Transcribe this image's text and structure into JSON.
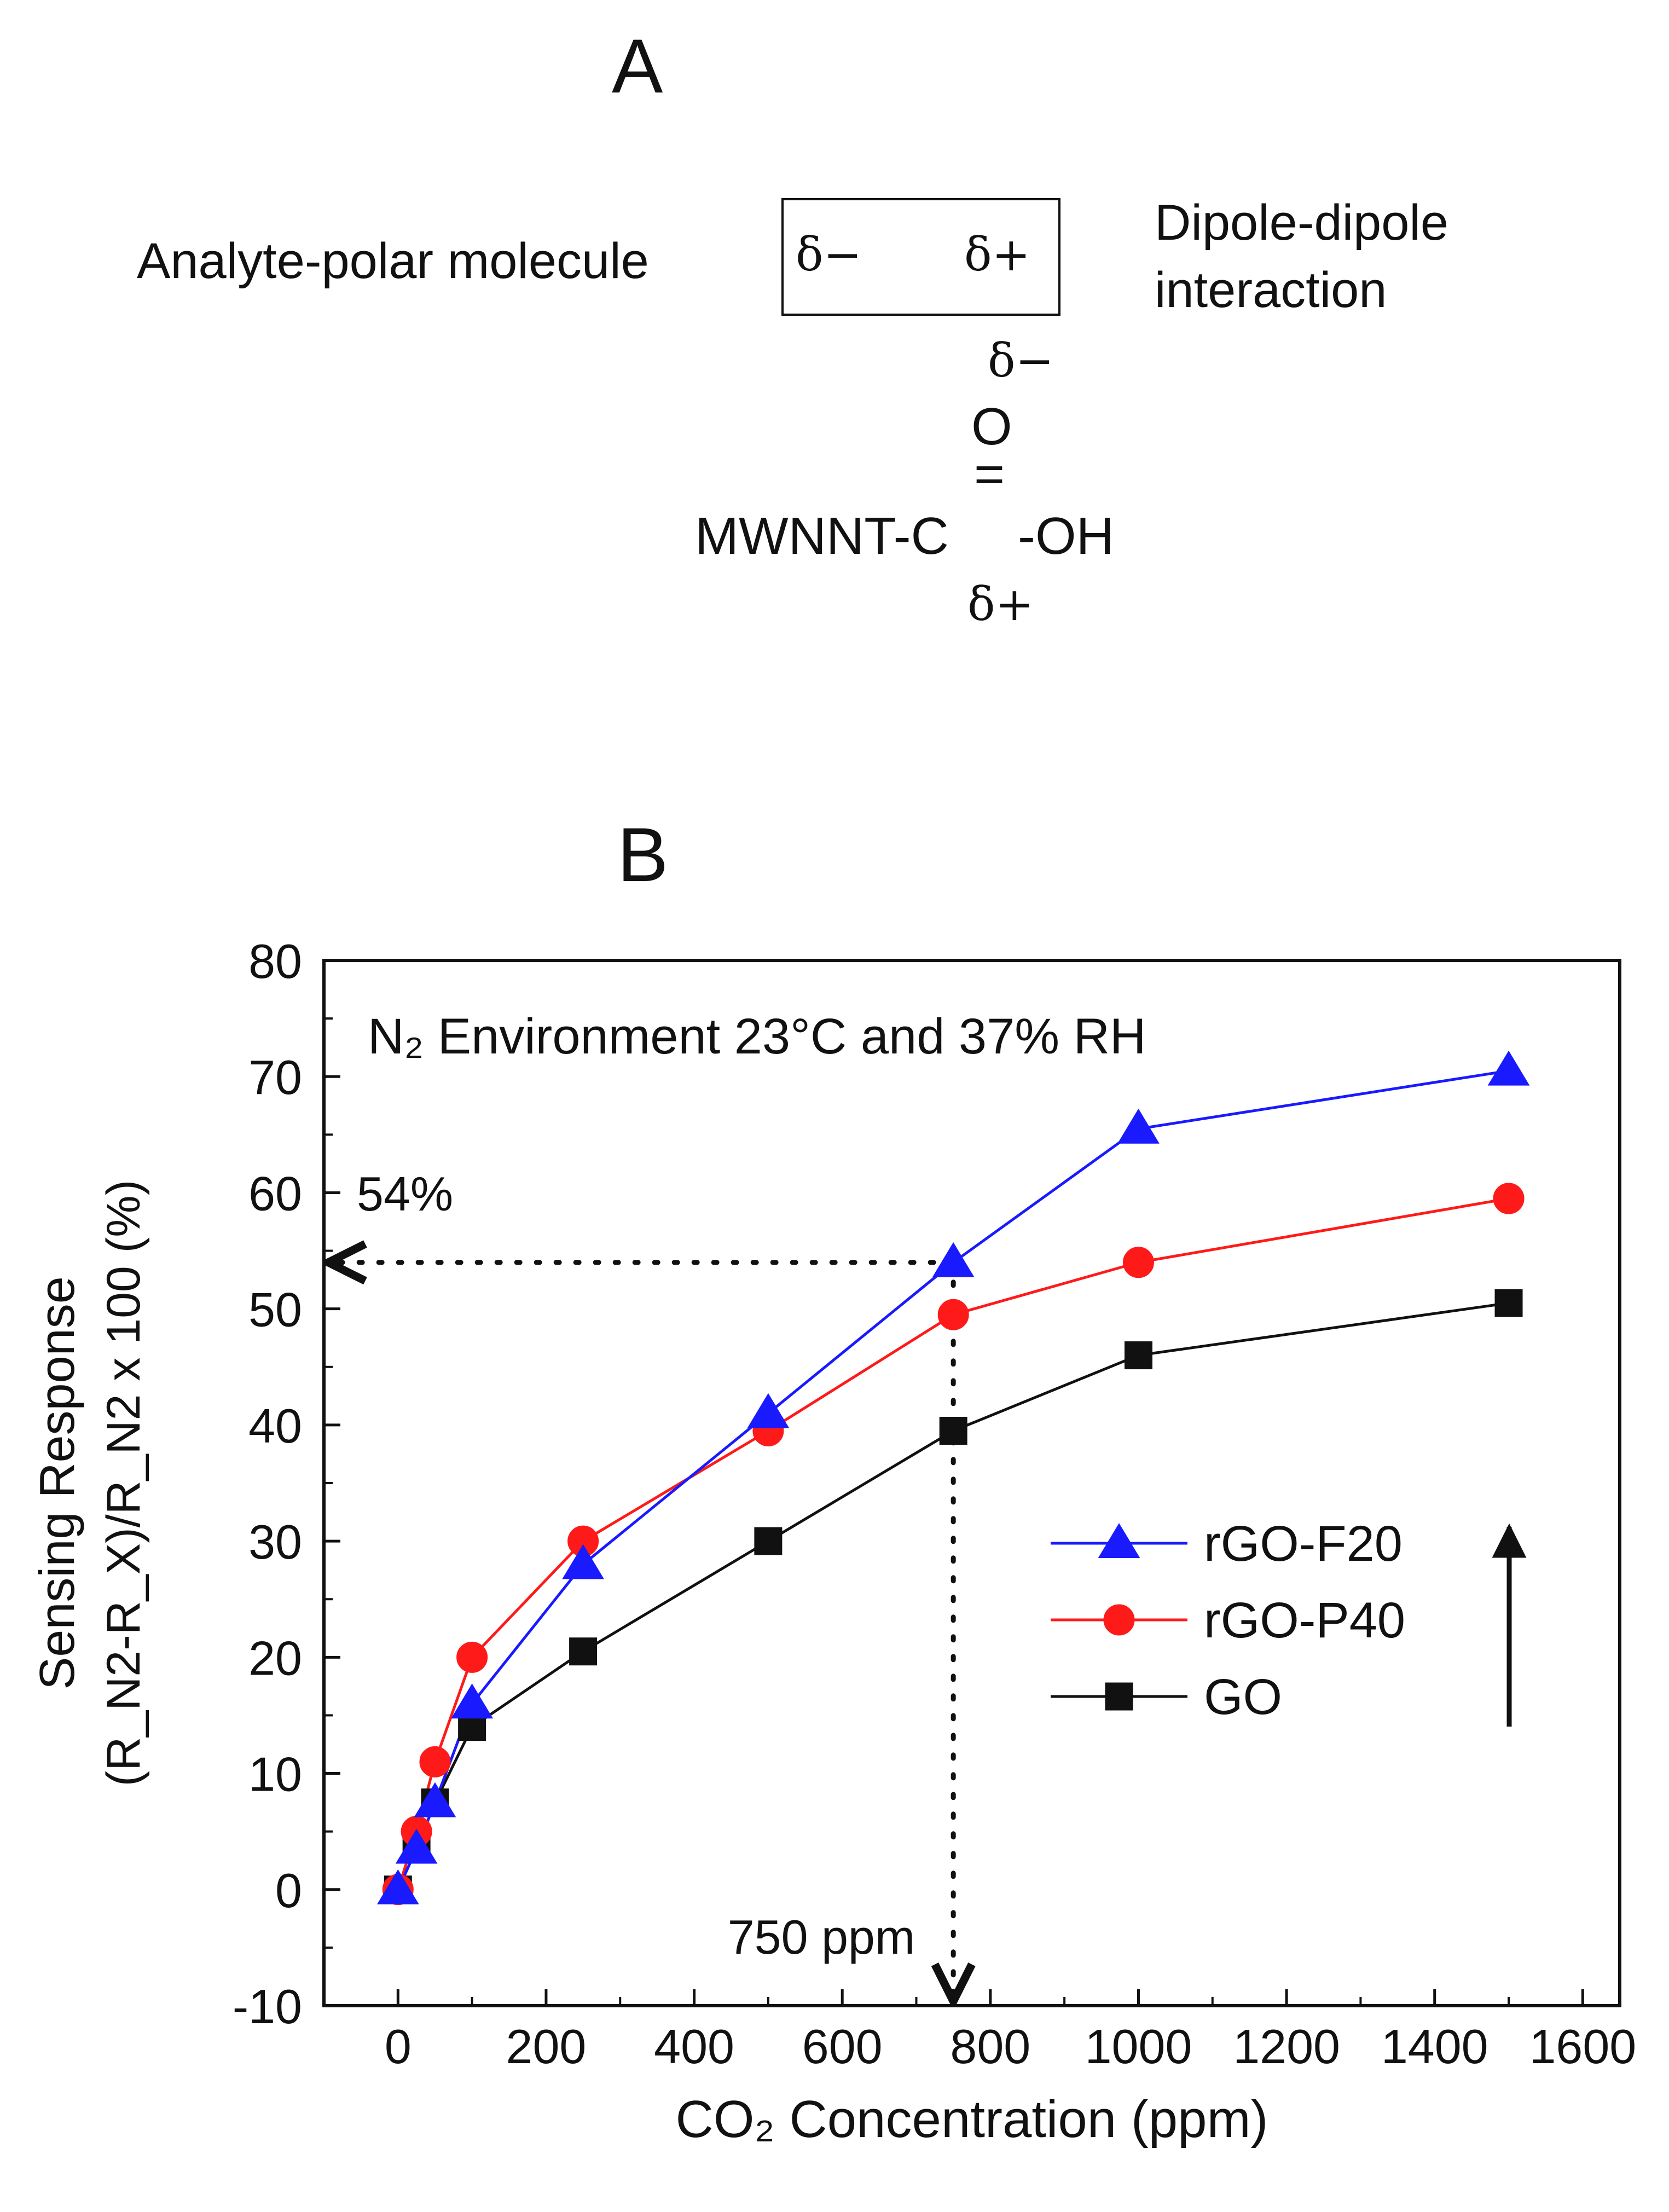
{
  "panel_a": {
    "label": "A",
    "analyte_label": "Analyte-polar molecule",
    "box_left_charge": "δ−",
    "box_right_charge": "δ+",
    "interaction_line1": "Dipole-dipole",
    "interaction_line2": "interaction",
    "oxygen_charge": "δ−",
    "oxygen": "O",
    "double_bond": "=",
    "formula_left": "MWNNT-C",
    "formula_right": "-OH",
    "carbon_charge": "δ+"
  },
  "panel_b": {
    "label": "B",
    "annotation_percent": "54%",
    "annotation_ppm": "750 ppm"
  },
  "chart_data": {
    "type": "line",
    "title": "N₂ Environment 23°C and 37% RH",
    "xlabel": "CO₂ Concentration (ppm)",
    "ylabel_line1": "Sensing Response",
    "ylabel_line2": "(R_N2-R_X)/R_N2 x 100 (%)",
    "xlim": [
      -100,
      1650
    ],
    "ylim": [
      -10,
      80
    ],
    "xticks": [
      0,
      200,
      400,
      600,
      800,
      1000,
      1200,
      1400,
      1600
    ],
    "yticks": [
      -10,
      0,
      10,
      20,
      30,
      40,
      50,
      60,
      70,
      80
    ],
    "grid": false,
    "legend_position": "right",
    "series": [
      {
        "name": "rGO-F20",
        "color": "#1a1aff",
        "marker": "triangle",
        "x": [
          0,
          25,
          50,
          100,
          250,
          500,
          750,
          1000,
          1500
        ],
        "y": [
          0,
          3.5,
          7.5,
          16,
          28,
          41,
          54,
          65.5,
          70.5
        ]
      },
      {
        "name": "rGO-P40",
        "color": "#ff1a1a",
        "marker": "circle",
        "x": [
          0,
          25,
          50,
          100,
          250,
          500,
          750,
          1000,
          1500
        ],
        "y": [
          0,
          5,
          11,
          20,
          30,
          39.5,
          49.5,
          54,
          59.5
        ]
      },
      {
        "name": "GO",
        "color": "#111111",
        "marker": "square",
        "x": [
          0,
          25,
          50,
          100,
          250,
          500,
          750,
          1000,
          1500
        ],
        "y": [
          0,
          3.5,
          7.5,
          14,
          20.5,
          30,
          39.5,
          46,
          50.5
        ]
      }
    ],
    "reference_lines": [
      {
        "type": "horizontal",
        "y": 54,
        "x_from": 750
      },
      {
        "type": "vertical",
        "x": 750,
        "y_from": 54
      }
    ]
  }
}
